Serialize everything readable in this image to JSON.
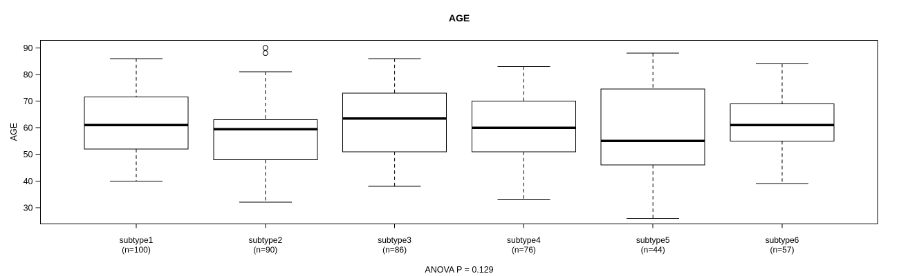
{
  "page": {
    "background": "#ffffff"
  },
  "chart_data": {
    "type": "boxplot",
    "title": "AGE",
    "ylabel": "AGE",
    "xlabel": "",
    "annotation": "ANOVA P = 0.129",
    "grid": false,
    "legend": "none",
    "yticks": [
      30,
      40,
      50,
      60,
      70,
      80,
      90
    ],
    "ylim": [
      23.9,
      92.8
    ],
    "categories": [
      "subtype1",
      "subtype2",
      "subtype3",
      "subtype4",
      "subtype5",
      "subtype6"
    ],
    "n_labels": [
      "(n=100)",
      "(n=90)",
      "(n=86)",
      "(n=76)",
      "(n=44)",
      "(n=57)"
    ],
    "series": [
      {
        "name": "subtype1",
        "n": 100,
        "whisker_low": 40,
        "q1": 52,
        "median": 61,
        "q3": 71.5,
        "whisker_high": 86,
        "outliers": []
      },
      {
        "name": "subtype2",
        "n": 90,
        "whisker_low": 32,
        "q1": 48,
        "median": 59.5,
        "q3": 63,
        "whisker_high": 81,
        "outliers": [
          88,
          90
        ]
      },
      {
        "name": "subtype3",
        "n": 86,
        "whisker_low": 38,
        "q1": 51,
        "median": 63.5,
        "q3": 73,
        "whisker_high": 86,
        "outliers": []
      },
      {
        "name": "subtype4",
        "n": 76,
        "whisker_low": 33,
        "q1": 51,
        "median": 60,
        "q3": 70,
        "whisker_high": 83,
        "outliers": []
      },
      {
        "name": "subtype5",
        "n": 44,
        "whisker_low": 26,
        "q1": 46,
        "median": 55,
        "q3": 74.5,
        "whisker_high": 88,
        "outliers": []
      },
      {
        "name": "subtype6",
        "n": 57,
        "whisker_low": 39,
        "q1": 55,
        "median": 61,
        "q3": 69,
        "whisker_high": 84,
        "outliers": []
      }
    ],
    "colors": {
      "line": "#000000",
      "median": "#000000",
      "box_fill": "#ffffff",
      "text": "#000000",
      "background": "#ffffff"
    }
  }
}
